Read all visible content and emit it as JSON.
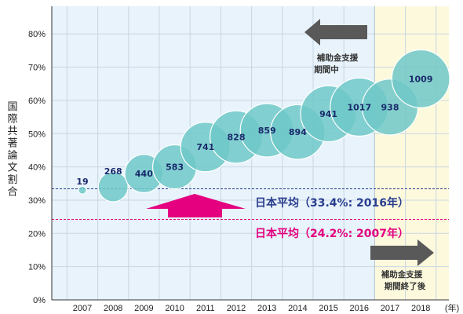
{
  "chart_data": {
    "type": "scatter",
    "title": "",
    "ylabel": "国際共著論文割合",
    "xunit": "(年)",
    "ylim": [
      0,
      0.85
    ],
    "yticks": [
      "0%",
      "10%",
      "20%",
      "30%",
      "40%",
      "50%",
      "60%",
      "70%",
      "80%"
    ],
    "yticks_values": [
      0,
      0.1,
      0.2,
      0.3,
      0.4,
      0.5,
      0.6,
      0.7,
      0.8
    ],
    "categories": [
      "2007",
      "2008",
      "2009",
      "2010",
      "2011",
      "2012",
      "2013",
      "2014",
      "2015",
      "2016",
      "2017",
      "2018"
    ],
    "series": [
      {
        "values": [
          0.33,
          0.34,
          0.38,
          0.4,
          0.46,
          0.49,
          0.51,
          0.505,
          0.56,
          0.58,
          0.58,
          0.665
        ],
        "sizes": [
          19,
          268,
          440,
          583,
          741,
          828,
          859,
          894,
          941,
          1017,
          938,
          1009
        ],
        "labels": [
          "19",
          "268",
          "440",
          "583",
          "741",
          "828",
          "859",
          "894",
          "941",
          "1017",
          "938",
          "1009"
        ]
      }
    ],
    "reference_lines": [
      {
        "label": "日本平均（33.4%: 2016年）",
        "value": 0.334,
        "color": "#2a3d8f"
      },
      {
        "label": "日本平均（24.2%: 2007年）",
        "value": 0.242,
        "color": "#e4007f"
      }
    ],
    "regions": [
      {
        "label_lines": [
          "補助金支援",
          "期間中"
        ],
        "from": "2007",
        "to": "2016",
        "color": "#e8f3fb"
      },
      {
        "label_lines": [
          "補助金支援",
          "期間終了後"
        ],
        "from": "2017",
        "to": "2018",
        "color": "#fdf9dd"
      }
    ],
    "colors": {
      "bubble": "#6ec8c8",
      "bubble_stroke": "#ffffff",
      "up_arrow": "#e4007f",
      "side_arrow": "#595959",
      "grid": "#c9d6e2"
    },
    "grid": true
  }
}
